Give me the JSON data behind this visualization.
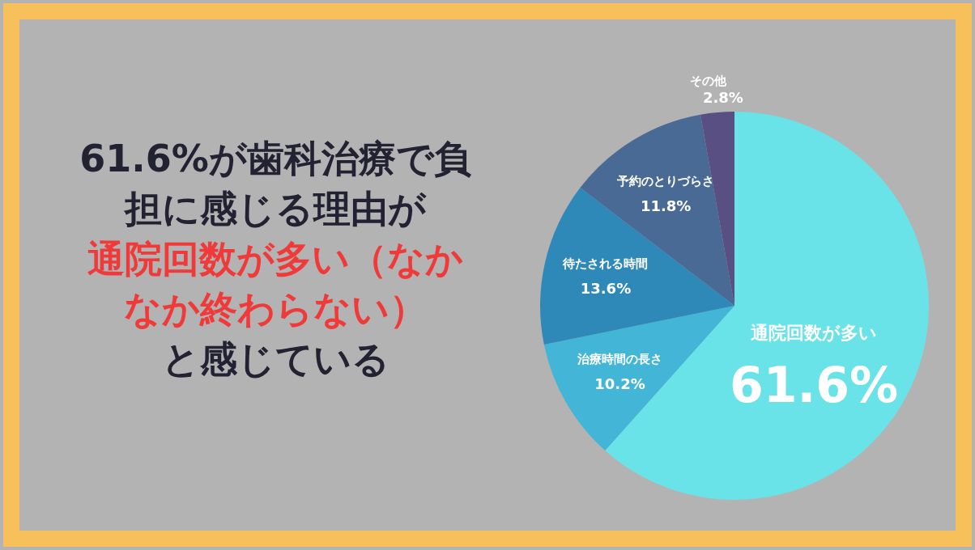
{
  "chart_data": {
    "type": "pie",
    "title": "61.6%が歯科治療で負担に感じる理由が",
    "subtitle": "通院回数が多い（なかなか終わらない）",
    "annotations": [
      "と感じている"
    ],
    "categories": [
      "通院回数が多い",
      "治療時間の長さ",
      "待たされる時間",
      "予約のとりづらさ",
      "その他"
    ],
    "values": [
      61.6,
      10.2,
      13.6,
      11.8,
      2.8
    ],
    "colors": [
      "#6ae3e8",
      "#43b5d6",
      "#2e89b8",
      "#4a6a96",
      "#5a4f82"
    ],
    "value_labels": [
      "61.6%",
      "10.2%",
      "13.6%",
      "11.8%",
      "2.8%"
    ]
  }
}
